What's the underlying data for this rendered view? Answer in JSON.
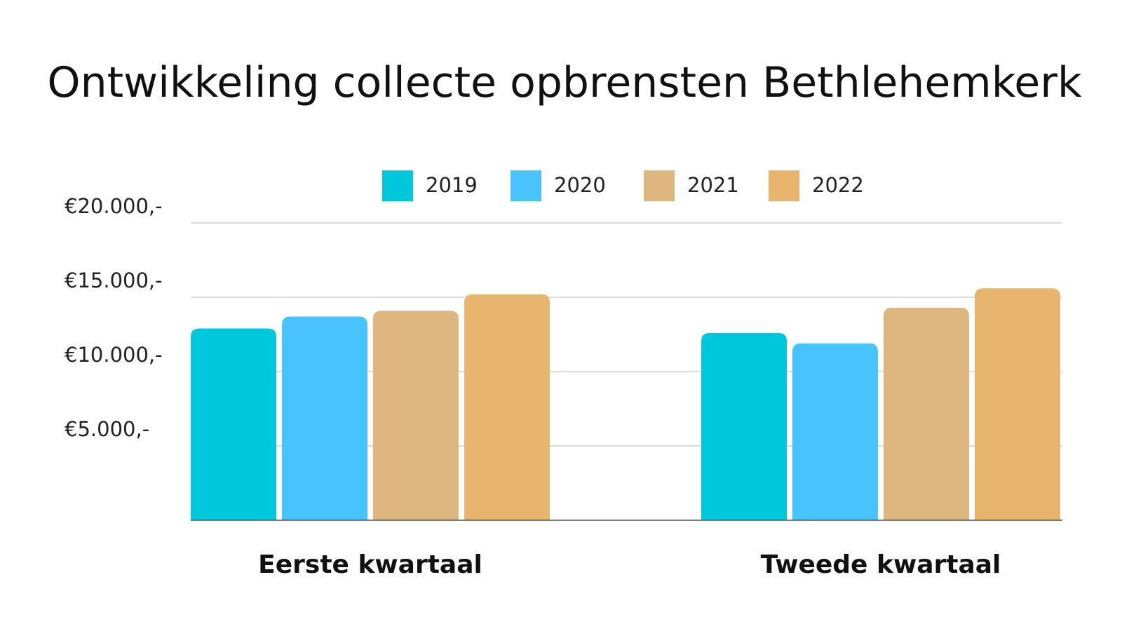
{
  "chart_data": {
    "type": "bar",
    "title": "Ontwikkeling collecte opbrensten Bethlehemkerk",
    "xlabel": "",
    "ylabel": "",
    "categories": [
      "Eerste kwartaal",
      "Tweede kwartaal"
    ],
    "series": [
      {
        "name": "2019",
        "color": "#00C8DC",
        "values": [
          12900,
          12600
        ]
      },
      {
        "name": "2020",
        "color": "#48C3FD",
        "values": [
          13700,
          11900
        ]
      },
      {
        "name": "2021",
        "color": "#DDB77F",
        "values": [
          14100,
          14300
        ]
      },
      {
        "name": "2022",
        "color": "#E8B56E",
        "values": [
          15200,
          15600
        ]
      }
    ],
    "yticks": [
      {
        "value": 5000,
        "label": "€5.000,-"
      },
      {
        "value": 10000,
        "label": "€10.000,-"
      },
      {
        "value": 15000,
        "label": "€15.000,-"
      },
      {
        "value": 20000,
        "label": "€20.000,-"
      }
    ],
    "ylim": [
      0,
      20000
    ],
    "grid": true,
    "legend_position": "top-center"
  }
}
